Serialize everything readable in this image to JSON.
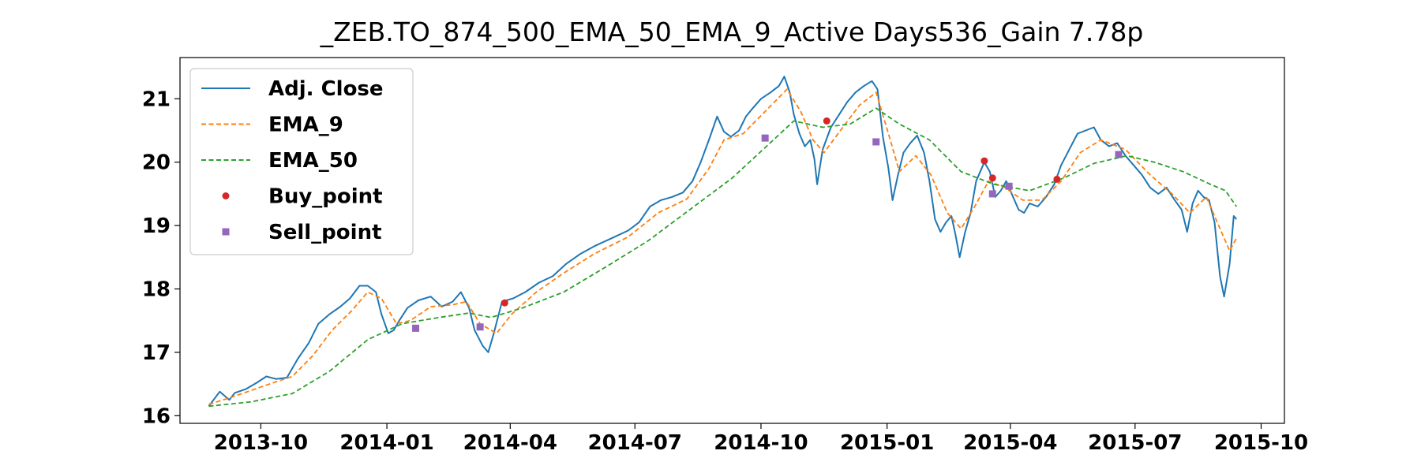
{
  "chart_data": {
    "type": "line",
    "title": "_ZEB.TO_874_500_EMA_50_EMA_9_Active Days536_Gain   7.78p",
    "xlabel": "",
    "ylabel": "",
    "xlim": [
      "2013-08-03",
      "2015-10-18"
    ],
    "ylim": [
      15.88,
      21.65
    ],
    "x_ticks": [
      "2013-10",
      "2014-01",
      "2014-04",
      "2014-07",
      "2014-10",
      "2015-01",
      "2015-04",
      "2015-07",
      "2015-10"
    ],
    "y_ticks": [
      16,
      17,
      18,
      19,
      20,
      21
    ],
    "grid": false,
    "legend_position": "top-left",
    "series": [
      {
        "name": "Adj. Close",
        "style": "solid",
        "color": "#1f77b4",
        "points": [
          [
            "2013-08-24",
            16.15
          ],
          [
            "2013-09-01",
            16.38
          ],
          [
            "2013-09-08",
            16.25
          ],
          [
            "2013-09-12",
            16.36
          ],
          [
            "2013-09-20",
            16.42
          ],
          [
            "2013-09-28",
            16.52
          ],
          [
            "2013-10-05",
            16.62
          ],
          [
            "2013-10-12",
            16.58
          ],
          [
            "2013-10-20",
            16.6
          ],
          [
            "2013-10-28",
            16.9
          ],
          [
            "2013-11-05",
            17.15
          ],
          [
            "2013-11-12",
            17.45
          ],
          [
            "2013-11-20",
            17.6
          ],
          [
            "2013-11-28",
            17.72
          ],
          [
            "2013-12-05",
            17.85
          ],
          [
            "2013-12-12",
            18.05
          ],
          [
            "2013-12-18",
            18.05
          ],
          [
            "2013-12-24",
            17.95
          ],
          [
            "2013-12-28",
            17.6
          ],
          [
            "2014-01-02",
            17.3
          ],
          [
            "2014-01-06",
            17.35
          ],
          [
            "2014-01-10",
            17.5
          ],
          [
            "2014-01-16",
            17.7
          ],
          [
            "2014-01-24",
            17.82
          ],
          [
            "2014-02-02",
            17.88
          ],
          [
            "2014-02-10",
            17.72
          ],
          [
            "2014-02-18",
            17.8
          ],
          [
            "2014-02-24",
            17.95
          ],
          [
            "2014-03-02",
            17.7
          ],
          [
            "2014-03-06",
            17.35
          ],
          [
            "2014-03-12",
            17.1
          ],
          [
            "2014-03-16",
            17.0
          ],
          [
            "2014-03-20",
            17.3
          ],
          [
            "2014-03-26",
            17.8
          ],
          [
            "2014-04-03",
            17.85
          ],
          [
            "2014-04-12",
            17.95
          ],
          [
            "2014-04-22",
            18.1
          ],
          [
            "2014-05-02",
            18.2
          ],
          [
            "2014-05-12",
            18.4
          ],
          [
            "2014-05-22",
            18.55
          ],
          [
            "2014-06-02",
            18.68
          ],
          [
            "2014-06-14",
            18.8
          ],
          [
            "2014-06-26",
            18.92
          ],
          [
            "2014-07-04",
            19.05
          ],
          [
            "2014-07-12",
            19.3
          ],
          [
            "2014-07-20",
            19.4
          ],
          [
            "2014-07-28",
            19.45
          ],
          [
            "2014-08-05",
            19.52
          ],
          [
            "2014-08-12",
            19.7
          ],
          [
            "2014-08-18",
            20.0
          ],
          [
            "2014-08-24",
            20.35
          ],
          [
            "2014-08-30",
            20.72
          ],
          [
            "2014-09-04",
            20.48
          ],
          [
            "2014-09-09",
            20.4
          ],
          [
            "2014-09-15",
            20.5
          ],
          [
            "2014-09-20",
            20.72
          ],
          [
            "2014-09-25",
            20.85
          ],
          [
            "2014-10-01",
            21.0
          ],
          [
            "2014-10-08",
            21.1
          ],
          [
            "2014-10-14",
            21.2
          ],
          [
            "2014-10-18",
            21.35
          ],
          [
            "2014-10-22",
            21.1
          ],
          [
            "2014-10-25",
            20.75
          ],
          [
            "2014-10-29",
            20.45
          ],
          [
            "2014-11-02",
            20.25
          ],
          [
            "2014-11-06",
            20.35
          ],
          [
            "2014-11-09",
            20.05
          ],
          [
            "2014-11-11",
            19.65
          ],
          [
            "2014-11-15",
            20.2
          ],
          [
            "2014-11-21",
            20.55
          ],
          [
            "2014-11-27",
            20.75
          ],
          [
            "2014-12-03",
            20.95
          ],
          [
            "2014-12-09",
            21.1
          ],
          [
            "2014-12-15",
            21.2
          ],
          [
            "2014-12-21",
            21.28
          ],
          [
            "2014-12-25",
            21.15
          ],
          [
            "2014-12-29",
            20.4
          ],
          [
            "2015-01-02",
            19.9
          ],
          [
            "2015-01-05",
            19.4
          ],
          [
            "2015-01-09",
            19.8
          ],
          [
            "2015-01-13",
            20.15
          ],
          [
            "2015-01-18",
            20.3
          ],
          [
            "2015-01-23",
            20.42
          ],
          [
            "2015-01-28",
            20.15
          ],
          [
            "2015-02-01",
            19.7
          ],
          [
            "2015-02-05",
            19.1
          ],
          [
            "2015-02-09",
            18.9
          ],
          [
            "2015-02-13",
            19.05
          ],
          [
            "2015-02-17",
            19.15
          ],
          [
            "2015-02-20",
            18.85
          ],
          [
            "2015-02-23",
            18.5
          ],
          [
            "2015-02-27",
            18.9
          ],
          [
            "2015-03-03",
            19.2
          ],
          [
            "2015-03-07",
            19.7
          ],
          [
            "2015-03-13",
            20.0
          ],
          [
            "2015-03-17",
            19.85
          ],
          [
            "2015-03-21",
            19.45
          ],
          [
            "2015-03-25",
            19.55
          ],
          [
            "2015-03-29",
            19.7
          ],
          [
            "2015-04-03",
            19.45
          ],
          [
            "2015-04-07",
            19.25
          ],
          [
            "2015-04-11",
            19.2
          ],
          [
            "2015-04-15",
            19.35
          ],
          [
            "2015-04-21",
            19.3
          ],
          [
            "2015-04-27",
            19.45
          ],
          [
            "2015-05-03",
            19.65
          ],
          [
            "2015-05-08",
            19.95
          ],
          [
            "2015-05-14",
            20.2
          ],
          [
            "2015-05-20",
            20.45
          ],
          [
            "2015-05-26",
            20.5
          ],
          [
            "2015-06-01",
            20.55
          ],
          [
            "2015-06-06",
            20.35
          ],
          [
            "2015-06-12",
            20.25
          ],
          [
            "2015-06-18",
            20.3
          ],
          [
            "2015-06-24",
            20.1
          ],
          [
            "2015-06-30",
            19.95
          ],
          [
            "2015-07-06",
            19.8
          ],
          [
            "2015-07-12",
            19.6
          ],
          [
            "2015-07-18",
            19.5
          ],
          [
            "2015-07-24",
            19.6
          ],
          [
            "2015-07-30",
            19.4
          ],
          [
            "2015-08-04",
            19.25
          ],
          [
            "2015-08-08",
            18.9
          ],
          [
            "2015-08-12",
            19.35
          ],
          [
            "2015-08-16",
            19.55
          ],
          [
            "2015-08-20",
            19.45
          ],
          [
            "2015-08-24",
            19.4
          ],
          [
            "2015-08-28",
            19.05
          ],
          [
            "2015-09-01",
            18.2
          ],
          [
            "2015-09-04",
            17.88
          ],
          [
            "2015-09-08",
            18.4
          ],
          [
            "2015-09-11",
            19.15
          ],
          [
            "2015-09-13",
            19.1
          ]
        ]
      },
      {
        "name": "EMA_9",
        "style": "dashed",
        "color": "#ff7f0e",
        "points": [
          [
            "2013-08-24",
            16.18
          ],
          [
            "2013-09-08",
            16.28
          ],
          [
            "2013-09-24",
            16.4
          ],
          [
            "2013-10-10",
            16.52
          ],
          [
            "2013-10-24",
            16.62
          ],
          [
            "2013-11-08",
            16.95
          ],
          [
            "2013-11-22",
            17.35
          ],
          [
            "2013-12-06",
            17.65
          ],
          [
            "2013-12-18",
            17.95
          ],
          [
            "2013-12-28",
            17.85
          ],
          [
            "2014-01-08",
            17.45
          ],
          [
            "2014-01-18",
            17.5
          ],
          [
            "2014-02-02",
            17.72
          ],
          [
            "2014-02-18",
            17.75
          ],
          [
            "2014-02-28",
            17.8
          ],
          [
            "2014-03-10",
            17.45
          ],
          [
            "2014-03-22",
            17.3
          ],
          [
            "2014-04-02",
            17.6
          ],
          [
            "2014-04-20",
            17.95
          ],
          [
            "2014-05-10",
            18.25
          ],
          [
            "2014-06-01",
            18.55
          ],
          [
            "2014-06-26",
            18.82
          ],
          [
            "2014-07-18",
            19.2
          ],
          [
            "2014-08-08",
            19.42
          ],
          [
            "2014-08-24",
            19.9
          ],
          [
            "2014-09-04",
            20.35
          ],
          [
            "2014-09-18",
            20.45
          ],
          [
            "2014-10-04",
            20.8
          ],
          [
            "2014-10-20",
            21.15
          ],
          [
            "2014-10-30",
            20.8
          ],
          [
            "2014-11-08",
            20.35
          ],
          [
            "2014-11-16",
            20.15
          ],
          [
            "2014-11-28",
            20.5
          ],
          [
            "2014-12-12",
            20.9
          ],
          [
            "2014-12-24",
            21.1
          ],
          [
            "2015-01-02",
            20.45
          ],
          [
            "2015-01-10",
            19.85
          ],
          [
            "2015-01-22",
            20.1
          ],
          [
            "2015-02-02",
            19.8
          ],
          [
            "2015-02-14",
            19.2
          ],
          [
            "2015-02-24",
            18.95
          ],
          [
            "2015-03-06",
            19.3
          ],
          [
            "2015-03-16",
            19.7
          ],
          [
            "2015-03-28",
            19.6
          ],
          [
            "2015-04-10",
            19.4
          ],
          [
            "2015-04-24",
            19.4
          ],
          [
            "2015-05-08",
            19.7
          ],
          [
            "2015-05-22",
            20.15
          ],
          [
            "2015-06-06",
            20.35
          ],
          [
            "2015-06-24",
            20.2
          ],
          [
            "2015-07-12",
            19.8
          ],
          [
            "2015-07-28",
            19.5
          ],
          [
            "2015-08-10",
            19.2
          ],
          [
            "2015-08-22",
            19.45
          ],
          [
            "2015-09-02",
            18.9
          ],
          [
            "2015-09-08",
            18.6
          ],
          [
            "2015-09-13",
            18.8
          ]
        ]
      },
      {
        "name": "EMA_50",
        "style": "dashed",
        "color": "#2ca02c",
        "points": [
          [
            "2013-08-24",
            16.15
          ],
          [
            "2013-09-24",
            16.22
          ],
          [
            "2013-10-24",
            16.35
          ],
          [
            "2013-11-20",
            16.7
          ],
          [
            "2013-12-18",
            17.2
          ],
          [
            "2014-01-12",
            17.45
          ],
          [
            "2014-02-08",
            17.55
          ],
          [
            "2014-03-02",
            17.62
          ],
          [
            "2014-03-18",
            17.55
          ],
          [
            "2014-04-10",
            17.7
          ],
          [
            "2014-05-10",
            17.95
          ],
          [
            "2014-06-10",
            18.35
          ],
          [
            "2014-07-10",
            18.75
          ],
          [
            "2014-08-10",
            19.25
          ],
          [
            "2014-09-10",
            19.75
          ],
          [
            "2014-10-05",
            20.25
          ],
          [
            "2014-10-25",
            20.65
          ],
          [
            "2014-11-15",
            20.55
          ],
          [
            "2014-12-05",
            20.6
          ],
          [
            "2014-12-24",
            20.85
          ],
          [
            "2015-01-10",
            20.6
          ],
          [
            "2015-02-01",
            20.35
          ],
          [
            "2015-02-24",
            19.85
          ],
          [
            "2015-03-20",
            19.65
          ],
          [
            "2015-04-15",
            19.55
          ],
          [
            "2015-05-10",
            19.75
          ],
          [
            "2015-06-01",
            19.98
          ],
          [
            "2015-06-25",
            20.1
          ],
          [
            "2015-07-15",
            20.0
          ],
          [
            "2015-08-05",
            19.85
          ],
          [
            "2015-08-25",
            19.65
          ],
          [
            "2015-09-05",
            19.55
          ],
          [
            "2015-09-13",
            19.3
          ]
        ]
      },
      {
        "name": "Buy_point",
        "style": "marker-circle",
        "color": "#d62728",
        "points": [
          [
            "2014-03-28",
            17.78
          ],
          [
            "2014-11-18",
            20.65
          ],
          [
            "2015-03-13",
            20.02
          ],
          [
            "2015-03-19",
            19.75
          ],
          [
            "2015-05-05",
            19.73
          ]
        ]
      },
      {
        "name": "Sell_point",
        "style": "marker-square",
        "color": "#9467bd",
        "points": [
          [
            "2014-01-22",
            17.38
          ],
          [
            "2014-03-10",
            17.4
          ],
          [
            "2014-10-04",
            20.38
          ],
          [
            "2014-12-24",
            20.32
          ],
          [
            "2015-03-19",
            19.5
          ],
          [
            "2015-03-31",
            19.62
          ],
          [
            "2015-06-19",
            20.12
          ]
        ]
      }
    ]
  }
}
